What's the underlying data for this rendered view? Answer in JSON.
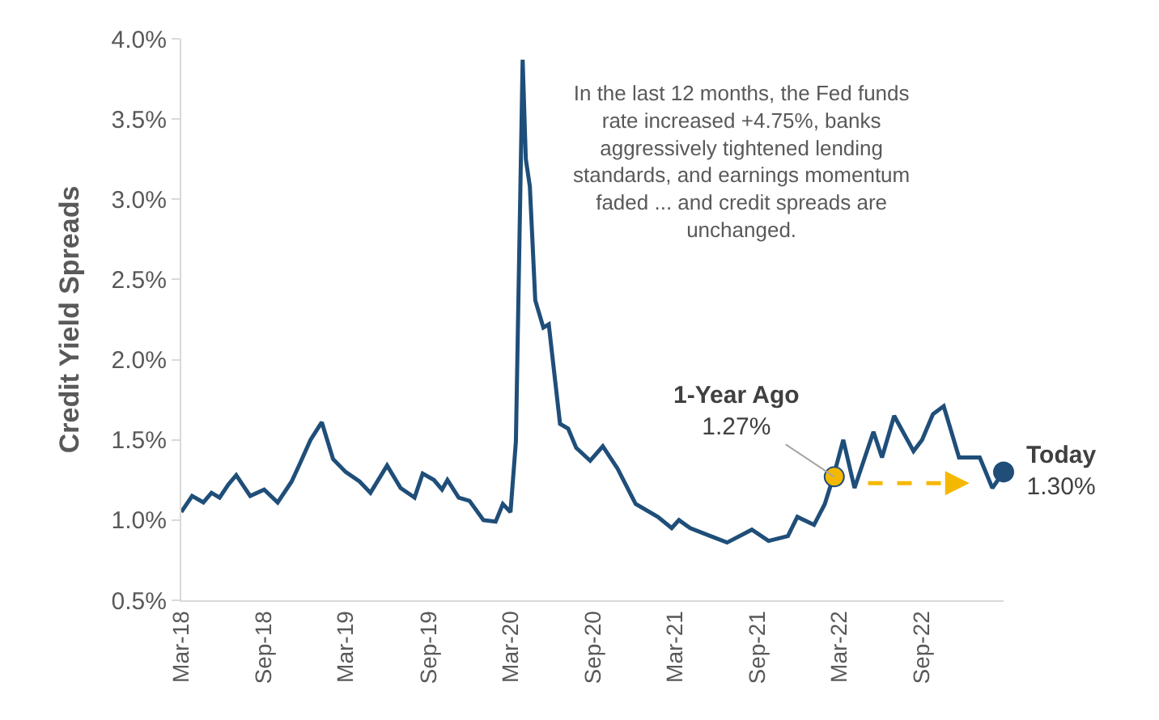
{
  "chart_data": {
    "type": "line",
    "ylabel": "Credit Yield Spreads",
    "xlim": [
      "2018-03-01",
      "2023-03-01"
    ],
    "xticks": [
      {
        "value": "2018-03-01",
        "label": "Mar-18"
      },
      {
        "value": "2018-09-01",
        "label": "Sep-18"
      },
      {
        "value": "2019-03-01",
        "label": "Mar-19"
      },
      {
        "value": "2019-09-01",
        "label": "Sep-19"
      },
      {
        "value": "2020-03-01",
        "label": "Mar-20"
      },
      {
        "value": "2020-09-01",
        "label": "Sep-20"
      },
      {
        "value": "2021-03-01",
        "label": "Mar-21"
      },
      {
        "value": "2021-09-01",
        "label": "Sep-21"
      },
      {
        "value": "2022-03-01",
        "label": "Mar-22"
      },
      {
        "value": "2022-09-01",
        "label": "Sep-22"
      }
    ],
    "ylim": [
      0.5,
      4.0
    ],
    "yticks": [
      {
        "value": 0.5,
        "label": "0.5%"
      },
      {
        "value": 1.0,
        "label": "1.0%"
      },
      {
        "value": 1.5,
        "label": "1.5%"
      },
      {
        "value": 2.0,
        "label": "2.0%"
      },
      {
        "value": 2.5,
        "label": "2.5%"
      },
      {
        "value": 3.0,
        "label": "3.0%"
      },
      {
        "value": 3.5,
        "label": "3.5%"
      },
      {
        "value": 4.0,
        "label": "4.0%"
      }
    ],
    "grid": false,
    "series": [
      {
        "color": "#1f4e79",
        "x": [
          "2018-03-01",
          "2018-03-25",
          "2018-04-19",
          "2018-05-07",
          "2018-05-25",
          "2018-06-13",
          "2018-07-01",
          "2018-08-01",
          "2018-09-01",
          "2018-10-01",
          "2018-11-01",
          "2018-11-19",
          "2018-12-13",
          "2019-01-07",
          "2019-02-01",
          "2019-03-01",
          "2019-04-01",
          "2019-04-25",
          "2019-06-01",
          "2019-07-01",
          "2019-08-01",
          "2019-08-19",
          "2019-09-13",
          "2019-10-01",
          "2019-10-13",
          "2019-11-07",
          "2019-12-01",
          "2020-01-01",
          "2020-01-28",
          "2020-02-13",
          "2020-03-01",
          "2020-03-13",
          "2020-03-28",
          "2020-04-04",
          "2020-04-13",
          "2020-04-25",
          "2020-05-13",
          "2020-05-25",
          "2020-06-19",
          "2020-07-07",
          "2020-07-25",
          "2020-08-25",
          "2020-09-22",
          "2020-10-25",
          "2020-12-04",
          "2021-01-22",
          "2021-02-22",
          "2021-03-10",
          "2021-04-04",
          "2021-05-19",
          "2021-06-25",
          "2021-08-19",
          "2021-09-25",
          "2021-11-07",
          "2021-11-28",
          "2022-01-04",
          "2022-01-28",
          "2022-02-16",
          "2022-03-10",
          "2022-04-04",
          "2022-05-16",
          "2022-06-04",
          "2022-07-01",
          "2022-08-13",
          "2022-09-01",
          "2022-09-25",
          "2022-10-19",
          "2022-11-22",
          "2023-01-07",
          "2023-02-04",
          "2023-03-01"
        ],
        "values": [
          1.05,
          1.15,
          1.11,
          1.17,
          1.14,
          1.22,
          1.28,
          1.15,
          1.19,
          1.11,
          1.24,
          1.35,
          1.5,
          1.61,
          1.38,
          1.3,
          1.24,
          1.17,
          1.34,
          1.2,
          1.14,
          1.29,
          1.25,
          1.19,
          1.25,
          1.14,
          1.12,
          1.0,
          0.99,
          1.1,
          1.05,
          1.49,
          3.87,
          3.25,
          3.08,
          2.37,
          2.2,
          2.22,
          1.6,
          1.57,
          1.45,
          1.37,
          1.46,
          1.32,
          1.1,
          1.02,
          0.95,
          1.0,
          0.95,
          0.9,
          0.86,
          0.94,
          0.87,
          0.9,
          1.02,
          0.97,
          1.1,
          1.27,
          1.5,
          1.2,
          1.55,
          1.39,
          1.65,
          1.43,
          1.5,
          1.66,
          1.71,
          1.39,
          1.39,
          1.2,
          1.3
        ]
      },
      {
        "type": "scatter",
        "name": "1-Year Ago",
        "color": "#f5b800",
        "x": [
          "2022-02-18"
        ],
        "values": [
          1.27
        ],
        "value_labels": [
          "1.27%"
        ]
      },
      {
        "type": "scatter",
        "name": "Today",
        "color": "#1f4e79",
        "x": [
          "2023-03-01"
        ],
        "values": [
          1.3
        ],
        "value_labels": [
          "1.30%"
        ]
      }
    ],
    "annotations": [
      "In the last 12 months, the Fed funds rate increased +4.75%, banks aggressively tightened lending standards, and earnings momentum faded ... and credit spreads are unchanged."
    ]
  }
}
